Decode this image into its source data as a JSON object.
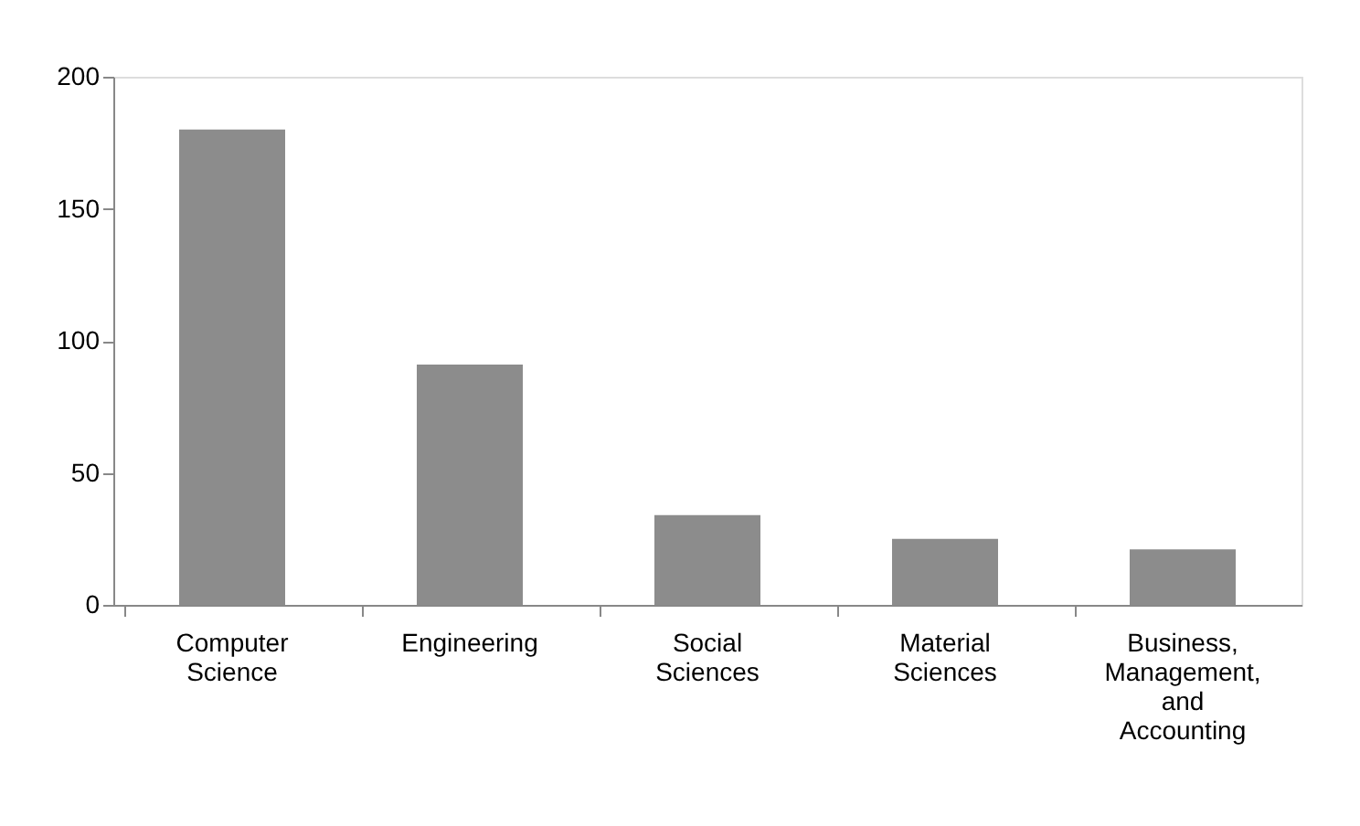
{
  "chart_data": {
    "type": "bar",
    "categories": [
      "Computer Science",
      "Engineering",
      "Social Sciences",
      "Material Sciences",
      "Business, Management, and Accounting"
    ],
    "values": [
      180,
      91,
      34,
      25,
      21
    ],
    "color": "#8c8c8c",
    "ylim": [
      0,
      200
    ],
    "yticks": [
      0,
      50,
      100,
      150,
      200
    ],
    "grid": false
  }
}
